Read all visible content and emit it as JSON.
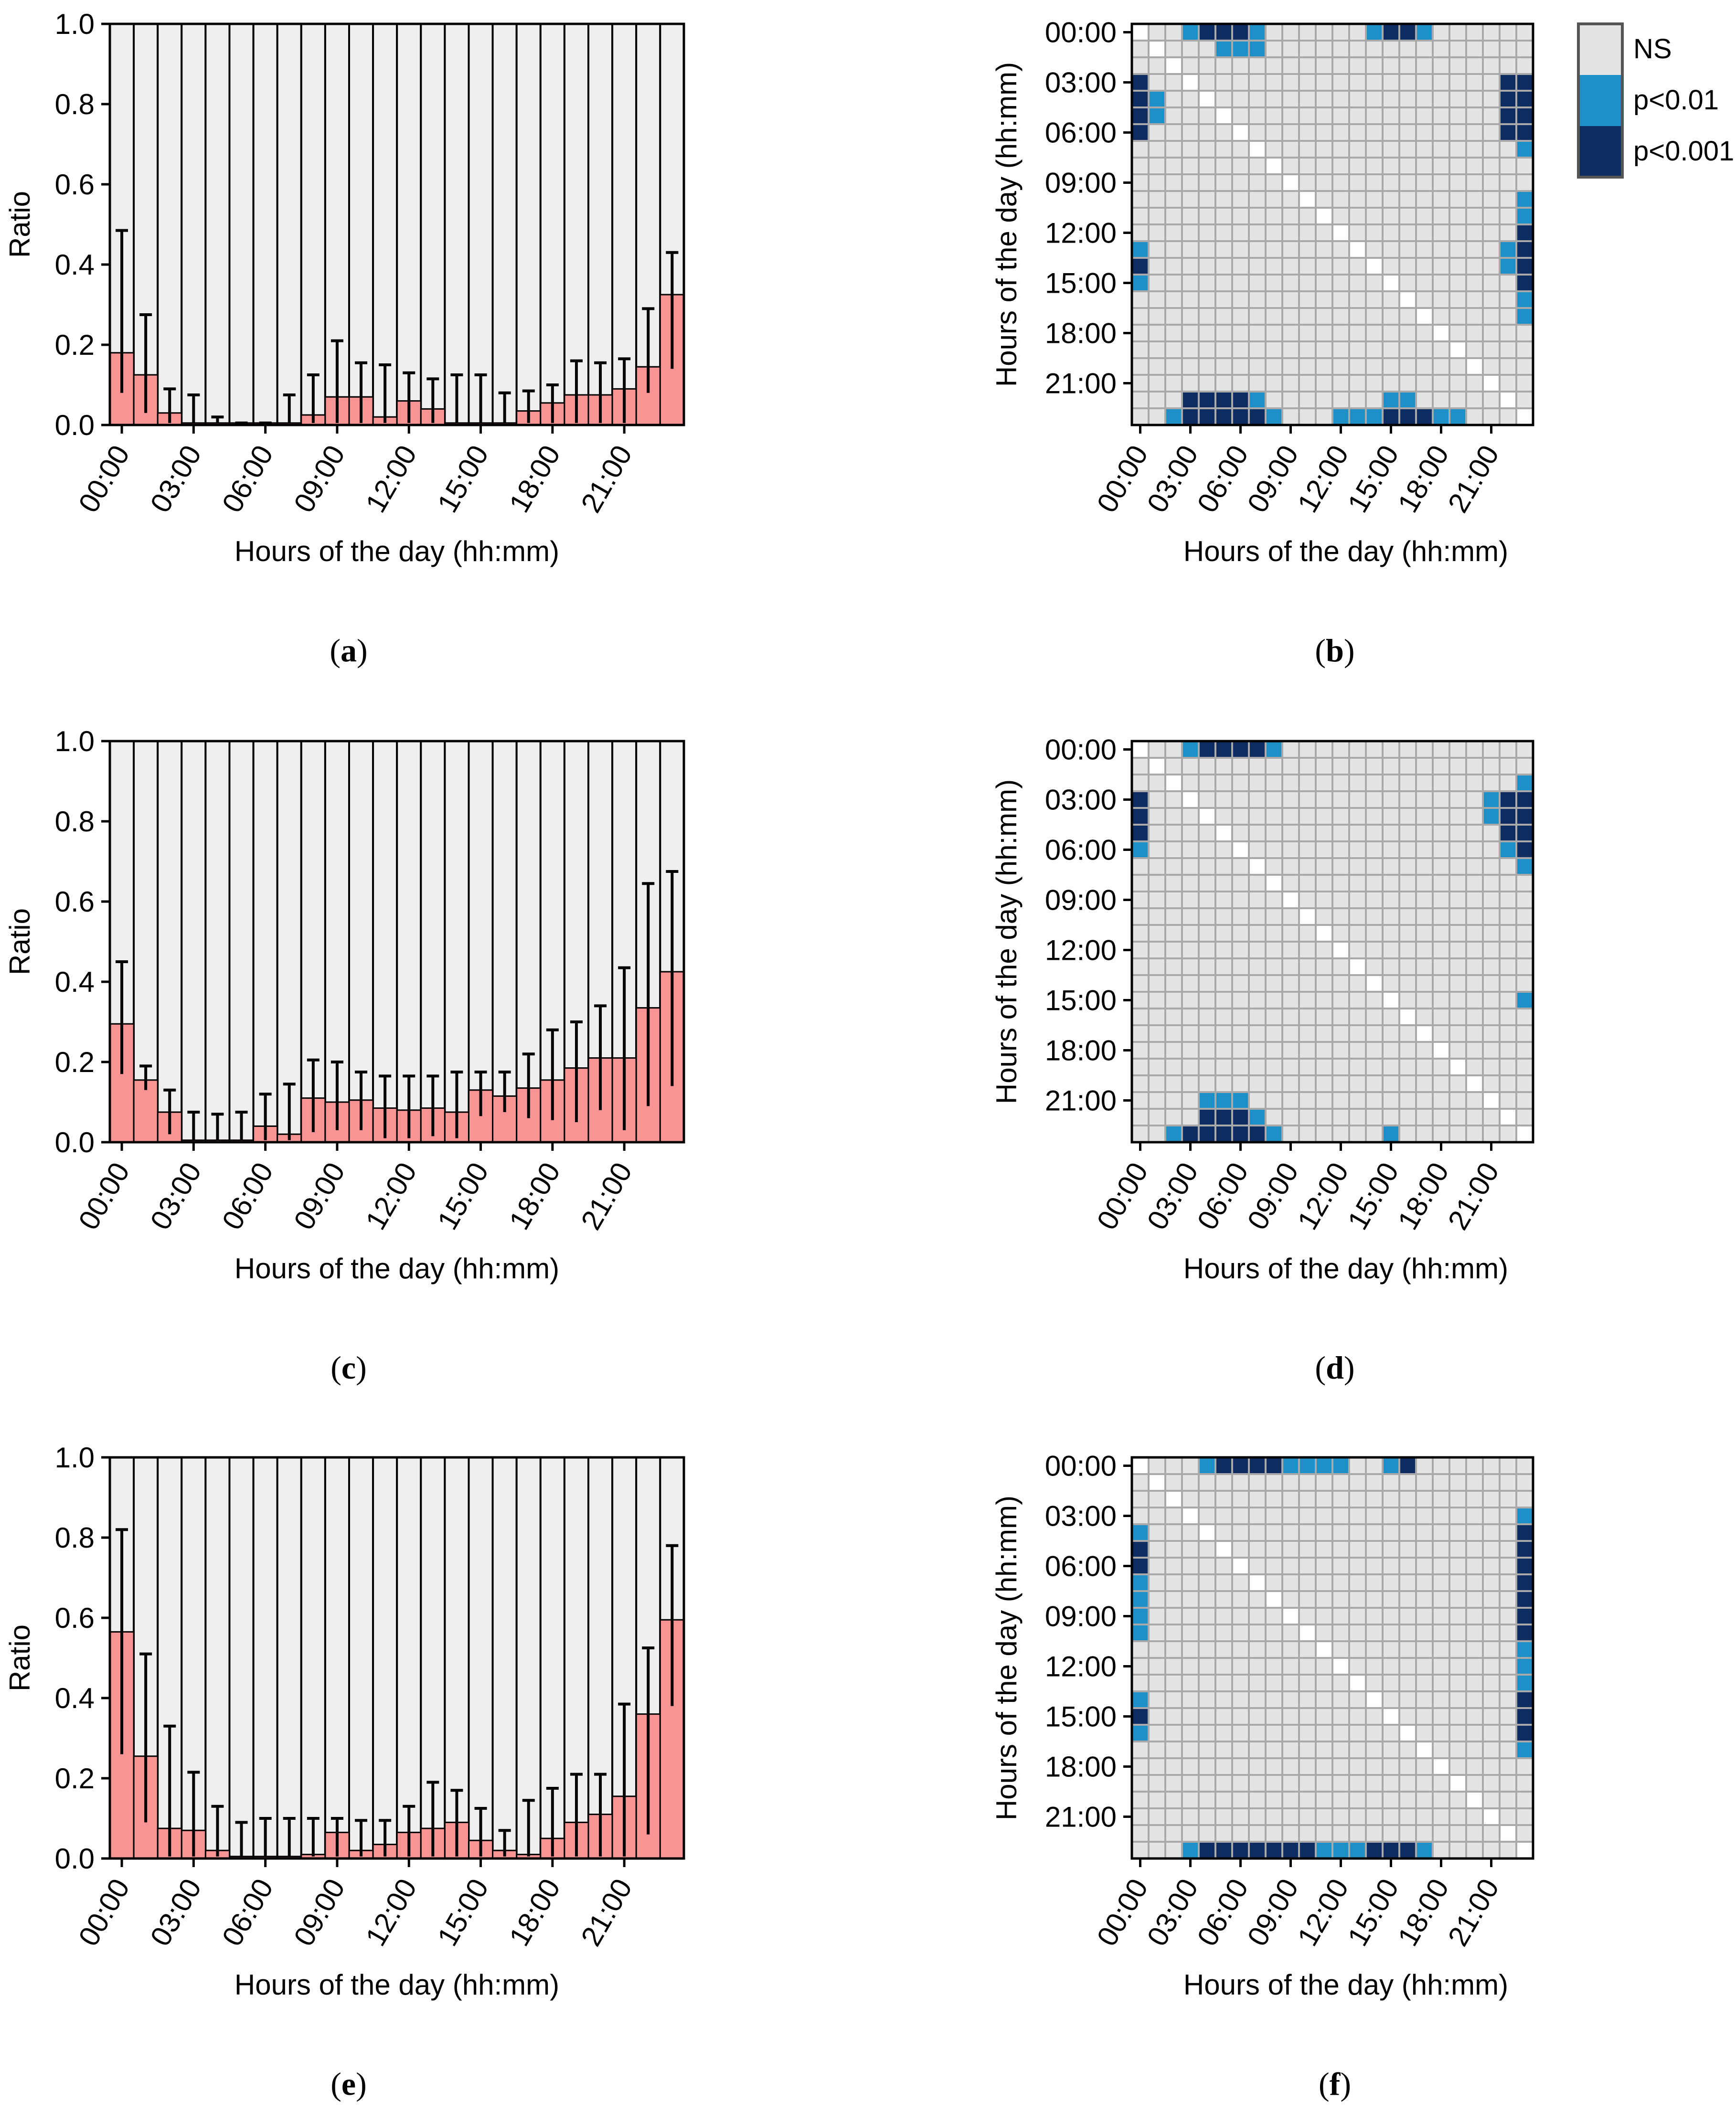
{
  "colors": {
    "bar_fill": "#f89494",
    "bar_bg": "#efefef",
    "cell_ns": "#e4e4e4",
    "cell_blank": "#ffffff",
    "cell_grid": "#a9a9a9",
    "cell_p01": "#1e90c8",
    "cell_p001": "#0d2d62",
    "axis": "#000000"
  },
  "legend": {
    "ns": "NS",
    "p01": "p<0.01",
    "p001": "p<0.001"
  },
  "chart_data": [
    {
      "panel": "(a)",
      "type": "bar",
      "ylabel": "Ratio",
      "xlabel": "Hours of the day (hh:mm)",
      "ylim": [
        0,
        1
      ],
      "yticks": [
        "0.0",
        "0.2",
        "0.4",
        "0.6",
        "0.8",
        "1.0"
      ],
      "xticks": [
        "00:00",
        "03:00",
        "06:00",
        "09:00",
        "12:00",
        "15:00",
        "18:00",
        "21:00"
      ],
      "values": [
        0.18,
        0.125,
        0.03,
        0.005,
        0.005,
        0.005,
        0.005,
        0.005,
        0.025,
        0.07,
        0.07,
        0.02,
        0.06,
        0.04,
        0.005,
        0.005,
        0.005,
        0.035,
        0.055,
        0.075,
        0.075,
        0.09,
        0.145,
        0.325
      ],
      "err_upper": [
        0.485,
        0.275,
        0.09,
        0.075,
        0.02,
        0.005,
        0.005,
        0.075,
        0.125,
        0.21,
        0.155,
        0.15,
        0.13,
        0.115,
        0.125,
        0.125,
        0.08,
        0.085,
        0.1,
        0.16,
        0.155,
        0.165,
        0.29,
        0.43
      ],
      "err_lower": [
        0.08,
        0.03,
        0.005,
        0.005,
        0.005,
        0.005,
        0.005,
        0.005,
        0.005,
        0.005,
        0.005,
        0.005,
        0.005,
        0.005,
        0.005,
        0.005,
        0.005,
        0.005,
        0.005,
        0.005,
        0.005,
        0.005,
        0.08,
        0.14
      ]
    },
    {
      "panel": "(b)",
      "type": "heatmap",
      "ylabel": "Hours of the day (hh:mm)",
      "xlabel": "Hours of the day (hh:mm)",
      "xticks": [
        "00:00",
        "03:00",
        "06:00",
        "09:00",
        "12:00",
        "15:00",
        "18:00",
        "21:00"
      ],
      "yticks": [
        "00:00",
        "03:00",
        "06:00",
        "09:00",
        "12:00",
        "15:00",
        "18:00",
        "21:00"
      ],
      "key": "0 = NS, 1 = p<0.01, 2 = p<0.001, 3 = diagonal (blank)",
      "rows": [
        "300122210000001221000000",
        "030001110000000000000000",
        "003000000000000000000000",
        "200300000000000000000022",
        "210030000000000000000022",
        "210003000000000000000022",
        "200000300000000000000022",
        "000000030000000000000001",
        "000000003000000000000000",
        "000000000300000000000000",
        "000000000030000000000001",
        "000000000003000000000001",
        "000000000000300000000002",
        "100000000000030000000012",
        "200000000000003000000012",
        "100000000000000300000002",
        "000000000000000030000001",
        "000000000000000003000001",
        "000000000000000000300000",
        "000000000000000000030000",
        "000000000000000000003000",
        "000000000000000000000300",
        "000222210000000110000030",
        "001222221000111222110003"
      ]
    },
    {
      "panel": "(c)",
      "type": "bar",
      "ylabel": "Ratio",
      "xlabel": "Hours of the day (hh:mm)",
      "ylim": [
        0,
        1
      ],
      "yticks": [
        "0.0",
        "0.2",
        "0.4",
        "0.6",
        "0.8",
        "1.0"
      ],
      "xticks": [
        "00:00",
        "03:00",
        "06:00",
        "09:00",
        "12:00",
        "15:00",
        "18:00",
        "21:00"
      ],
      "values": [
        0.295,
        0.155,
        0.075,
        0.005,
        0.005,
        0.005,
        0.04,
        0.02,
        0.11,
        0.1,
        0.105,
        0.085,
        0.08,
        0.085,
        0.075,
        0.13,
        0.115,
        0.135,
        0.155,
        0.185,
        0.21,
        0.21,
        0.335,
        0.425
      ],
      "err_upper": [
        0.45,
        0.19,
        0.13,
        0.075,
        0.07,
        0.075,
        0.12,
        0.145,
        0.205,
        0.2,
        0.175,
        0.165,
        0.165,
        0.165,
        0.175,
        0.175,
        0.175,
        0.22,
        0.28,
        0.3,
        0.34,
        0.435,
        0.645,
        0.675
      ],
      "err_lower": [
        0.17,
        0.13,
        0.02,
        0.005,
        0.005,
        0.005,
        0.005,
        0.005,
        0.025,
        0.03,
        0.03,
        0.01,
        0.01,
        0.015,
        0.01,
        0.065,
        0.075,
        0.06,
        0.055,
        0.05,
        0.08,
        0.03,
        0.09,
        0.14
      ]
    },
    {
      "panel": "(d)",
      "type": "heatmap",
      "ylabel": "Hours of the day (hh:mm)",
      "xlabel": "Hours of the day (hh:mm)",
      "xticks": [
        "00:00",
        "03:00",
        "06:00",
        "09:00",
        "12:00",
        "15:00",
        "18:00",
        "21:00"
      ],
      "yticks": [
        "00:00",
        "03:00",
        "06:00",
        "09:00",
        "12:00",
        "15:00",
        "18:00",
        "21:00"
      ],
      "key": "0 = NS, 1 = p<0.01, 2 = p<0.001, 3 = diagonal (blank)",
      "rows": [
        "300122221000000000000000",
        "030000000000000000000000",
        "003000000000000000000001",
        "200300000000000000000122",
        "200030000000000000000122",
        "200003000000000000000022",
        "100000300000000000000012",
        "000000030000000000000001",
        "000000003000000000000000",
        "000000000300000000000000",
        "000000000030000000000000",
        "000000000003000000000000",
        "000000000000300000000000",
        "000000000000030000000000",
        "000000000000003000000000",
        "000000000000000300000001",
        "000000000000000030000000",
        "000000000000000003000000",
        "000000000000000000300000",
        "000000000000000000030000",
        "000000000000000000003000",
        "000011100000000000000300",
        "000022210000000000000030",
        "001222221000000100000003"
      ]
    },
    {
      "panel": "(e)",
      "type": "bar",
      "ylabel": "Ratio",
      "xlabel": "Hours of the day (hh:mm)",
      "ylim": [
        0,
        1
      ],
      "yticks": [
        "0.0",
        "0.2",
        "0.4",
        "0.6",
        "0.8",
        "1.0"
      ],
      "xticks": [
        "00:00",
        "03:00",
        "06:00",
        "09:00",
        "12:00",
        "15:00",
        "18:00",
        "21:00"
      ],
      "values": [
        0.565,
        0.255,
        0.075,
        0.07,
        0.02,
        0.005,
        0.005,
        0.005,
        0.01,
        0.065,
        0.02,
        0.035,
        0.065,
        0.075,
        0.09,
        0.045,
        0.02,
        0.01,
        0.05,
        0.09,
        0.11,
        0.155,
        0.36,
        0.595
      ],
      "err_upper": [
        0.82,
        0.51,
        0.33,
        0.215,
        0.13,
        0.09,
        0.1,
        0.1,
        0.1,
        0.1,
        0.095,
        0.095,
        0.13,
        0.19,
        0.17,
        0.125,
        0.07,
        0.145,
        0.175,
        0.21,
        0.21,
        0.385,
        0.525,
        0.78
      ],
      "err_lower": [
        0.26,
        0.09,
        0.005,
        0.005,
        0.005,
        0.005,
        0.005,
        0.005,
        0.005,
        0.005,
        0.005,
        0.005,
        0.005,
        0.005,
        0.005,
        0.005,
        0.005,
        0.005,
        0.005,
        0.005,
        0.005,
        0.005,
        0.06,
        0.38
      ]
    },
    {
      "panel": "(f)",
      "type": "heatmap",
      "ylabel": "Hours of the day (hh:mm)",
      "xlabel": "Hours of the day (hh:mm)",
      "xticks": [
        "00:00",
        "03:00",
        "06:00",
        "09:00",
        "12:00",
        "15:00",
        "18:00",
        "21:00"
      ],
      "yticks": [
        "00:00",
        "03:00",
        "06:00",
        "09:00",
        "12:00",
        "15:00",
        "18:00",
        "21:00"
      ],
      "key": "0 = NS, 1 = p<0.01, 2 = p<0.001, 3 = diagonal (blank)",
      "rows": [
        "300012222111100120000000",
        "030000000000000000000000",
        "003000000000000000000000",
        "000300000000000000000001",
        "100030000000000000000002",
        "200003000000000000000002",
        "200000300000000000000002",
        "100000030000000000000002",
        "100000003000000000000002",
        "100000000300000000000002",
        "100000000030000000000002",
        "000000000003000000000001",
        "000000000000300000000001",
        "000000000000030000000001",
        "100000000000003000000002",
        "200000000000000300000002",
        "100000000000000030000002",
        "000000000000000003000001",
        "000000000000000000300000",
        "000000000000000000030000",
        "000000000000000000003000",
        "000000000000000000000300",
        "000000000000000000000030",
        "000122222221112221000003"
      ]
    }
  ]
}
